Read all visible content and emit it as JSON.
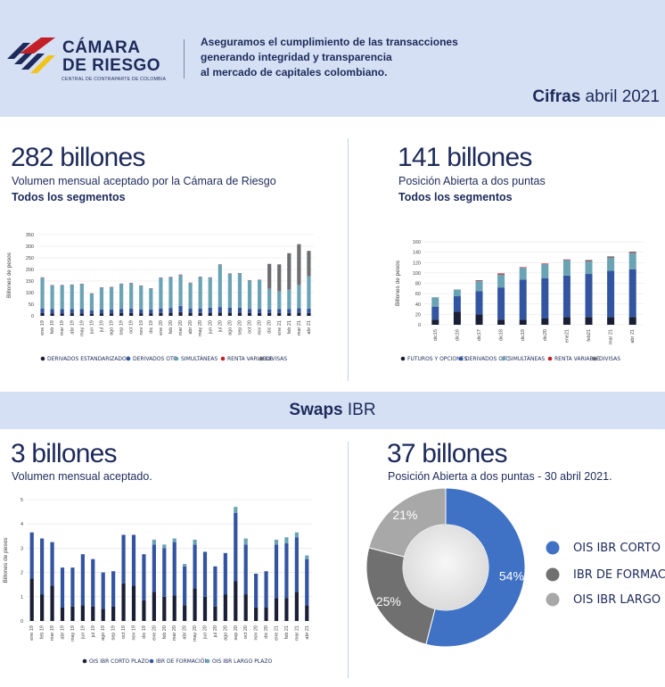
{
  "header": {
    "logo_line1": "CÁMARA",
    "logo_line2": "DE RIESGO",
    "logo_sub": "CENTRAL DE CONTRAPARTE DE COLOMBIA",
    "tagline1": "Aseguramos el cumplimiento de las transacciones",
    "tagline2": "generando integridad y transparencia",
    "tagline3": "al mercado de capitales colombiano.",
    "cifras_bold": "Cifras",
    "cifras_rest": " abril 2021"
  },
  "band": {
    "bold": "Swaps",
    "rest": " IBR"
  },
  "panels": {
    "volumen": {
      "headline": "282 billones",
      "subtitle": "Volumen mensual aceptado por la Cámara de Riesgo",
      "segment": "Todos los segmentos"
    },
    "posicion": {
      "headline": "141 billones",
      "subtitle": "Posición Abierta a dos puntas",
      "segment": "Todos los segmentos"
    },
    "swaps_volumen": {
      "headline": "3 billones",
      "subtitle": "Volumen mensual aceptado."
    },
    "swaps_posicion": {
      "headline": "37 billones",
      "subtitle": "Posición Abierta a dos puntas -  30 abril 2021."
    }
  },
  "colors": {
    "navy": "#1a1f36",
    "blue": "#3355a1",
    "teal": "#6aa3b4",
    "red": "#c22026",
    "gray": "#6d6e71",
    "pie_blue": "#3f71c4",
    "pie_dark": "#707070",
    "pie_light": "#a8a8a8"
  },
  "chart_data": [
    {
      "type": "bar",
      "stacked": true,
      "ylabel": "Billones de pesos",
      "ylim": [
        0,
        350
      ],
      "yticks": [
        "0",
        "50",
        "100",
        "150",
        "200",
        "250",
        "300",
        "350"
      ],
      "grid": true,
      "legend_position": "bottom",
      "categories": [
        "ene 19",
        "feb 19",
        "mar 19",
        "abr 19",
        "may 19",
        "jun 19",
        "jul 19",
        "ago 19",
        "sep 19",
        "oct 19",
        "nov 19",
        "dic 19",
        "ene 20",
        "feb 20",
        "mar 20",
        "abr 20",
        "may 20",
        "jun 20",
        "jul 20",
        "ago 20",
        "sep 20",
        "oct 20",
        "nov 20",
        "dic 20",
        "ene 21",
        "feb 21",
        "mar 21",
        "abr 21"
      ],
      "series": [
        {
          "name": "DERIVADOS ESTANDARIZADOS",
          "color": "#1a1f36",
          "values": [
            12,
            11,
            11,
            11,
            11,
            9,
            11,
            11,
            12,
            12,
            11,
            11,
            12,
            13,
            16,
            13,
            12,
            13,
            14,
            13,
            13,
            12,
            12,
            12,
            12,
            12,
            13,
            12
          ]
        },
        {
          "name": "DERIVADOS OTC",
          "color": "#3355a1",
          "values": [
            20,
            18,
            18,
            18,
            19,
            14,
            16,
            17,
            18,
            19,
            17,
            16,
            20,
            21,
            27,
            19,
            20,
            22,
            24,
            22,
            22,
            18,
            18,
            16,
            18,
            18,
            20,
            19
          ]
        },
        {
          "name": "SIMULTÁNEAS",
          "color": "#6aa3b4",
          "values": [
            133,
            103,
            103,
            105,
            107,
            73,
            95,
            96,
            108,
            110,
            102,
            91,
            132,
            133,
            133,
            110,
            136,
            130,
            183,
            147,
            148,
            123,
            125,
            90,
            76,
            84,
            100,
            140
          ]
        },
        {
          "name": "RENTA VARIABLE",
          "color": "#c22026",
          "values": [
            1,
            1,
            1,
            1,
            1,
            1,
            1,
            1,
            1,
            1,
            1,
            1,
            1,
            1,
            2,
            1,
            1,
            1,
            1,
            1,
            1,
            1,
            1,
            1,
            1,
            1,
            1,
            1
          ]
        },
        {
          "name": "DIVISAS",
          "color": "#6d6e71",
          "values": [
            0,
            0,
            0,
            0,
            0,
            0,
            0,
            0,
            0,
            0,
            0,
            0,
            0,
            0,
            0,
            0,
            0,
            0,
            0,
            0,
            0,
            0,
            0,
            105,
            115,
            155,
            175,
            108
          ]
        }
      ]
    },
    {
      "type": "bar",
      "stacked": true,
      "ylabel": "Billones de pesos",
      "ylim": [
        0,
        160
      ],
      "yticks": [
        "0",
        "20",
        "40",
        "60",
        "80",
        "100",
        "120",
        "140",
        "160"
      ],
      "grid": true,
      "legend_position": "bottom",
      "categories": [
        "dic15",
        "dic16",
        "dic17",
        "dic18",
        "dic19",
        "dic20",
        "ene21",
        "feb21",
        "mar 21",
        "abr 21"
      ],
      "series": [
        {
          "name": "FUTUROS Y OPCIONES",
          "color": "#1a1f36",
          "values": [
            10,
            25,
            20,
            10,
            10,
            12,
            15,
            15,
            15,
            15
          ]
        },
        {
          "name": "DERIVADOS OTC",
          "color": "#3355a1",
          "values": [
            25,
            30,
            45,
            62,
            77,
            78,
            80,
            83,
            89,
            92
          ]
        },
        {
          "name": "SIMULTÁNEAS",
          "color": "#6aa3b4",
          "values": [
            18,
            13,
            20,
            25,
            23,
            27,
            30,
            25,
            26,
            31
          ]
        },
        {
          "name": "RENTA VARIABLE",
          "color": "#c22026",
          "values": [
            0,
            0,
            1,
            2,
            1,
            1,
            1,
            1,
            1,
            1
          ]
        },
        {
          "name": "DIVISAS",
          "color": "#6d6e71",
          "values": [
            0,
            0,
            0,
            0,
            0,
            0,
            0,
            1,
            1,
            2
          ]
        }
      ]
    },
    {
      "type": "bar",
      "stacked": true,
      "ylabel": "Billones de pesos",
      "ylim": [
        0,
        5
      ],
      "yticks": [
        "0",
        "1",
        "2",
        "3",
        "4",
        "5"
      ],
      "grid": true,
      "legend_position": "bottom",
      "categories": [
        "ene 19",
        "feb 19",
        "mar 19",
        "abr 19",
        "may 19",
        "jun 19",
        "jul 19",
        "ago 19",
        "sep 19",
        "oct 19",
        "nov 19",
        "dic 19",
        "ene 20",
        "feb 20",
        "mar 20",
        "abr 20",
        "may 20",
        "jun 20",
        "jul 20",
        "ago 20",
        "sep 20",
        "oct 20",
        "nov 20",
        "dic 20",
        "ene 21",
        "feb 21",
        "mar 21",
        "abr 21"
      ],
      "series": [
        {
          "name": "OIS IBR CORTO PLAZO",
          "color": "#1a1f36",
          "values": [
            1.75,
            1.1,
            1.45,
            0.55,
            0.6,
            0.65,
            0.6,
            0.5,
            0.6,
            1.55,
            1.45,
            0.85,
            1.2,
            1.0,
            1.05,
            0.65,
            1.35,
            1.0,
            0.6,
            1.1,
            1.65,
            1.1,
            0.55,
            0.55,
            0.95,
            0.95,
            1.2,
            0.65
          ]
        },
        {
          "name": "IBR DE FORMACIÓN",
          "color": "#3355a1",
          "values": [
            1.9,
            2.3,
            1.8,
            1.65,
            1.6,
            2.1,
            1.95,
            1.5,
            1.45,
            2.0,
            2.1,
            1.9,
            1.95,
            2.0,
            2.2,
            1.6,
            1.8,
            1.85,
            1.65,
            1.7,
            2.8,
            2.05,
            1.4,
            1.5,
            2.2,
            2.25,
            2.25,
            1.9
          ]
        },
        {
          "name": "OIS IBR LARGO PLAZO",
          "color": "#6aa3b4",
          "values": [
            0,
            0,
            0,
            0,
            0,
            0,
            0,
            0,
            0,
            0,
            0,
            0,
            0.2,
            0.15,
            0.15,
            0.1,
            0.2,
            0,
            0,
            0,
            0.25,
            0.25,
            0,
            0,
            0.2,
            0.25,
            0.2,
            0.15
          ]
        }
      ]
    },
    {
      "type": "pie",
      "donut": true,
      "categories": [
        "OIS IBR CORTO PLAZ",
        "IBR DE FORMACIÓN",
        "OIS IBR LARGO PLAZ"
      ],
      "values": [
        54,
        25,
        21
      ],
      "labels": [
        "54%",
        "25%",
        "21%"
      ],
      "colors": [
        "#3f71c4",
        "#707070",
        "#a8a8a8"
      ],
      "legend_position": "right"
    }
  ]
}
